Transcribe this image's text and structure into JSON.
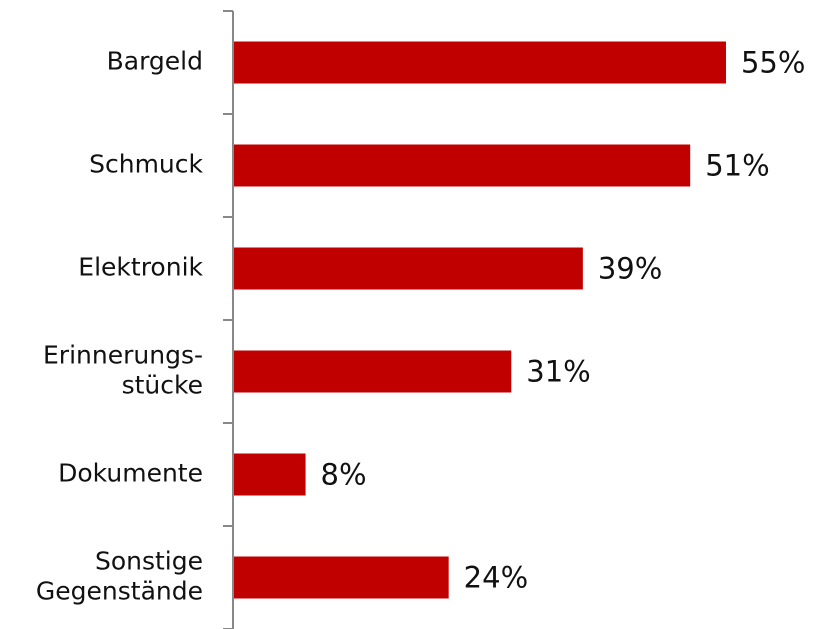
{
  "chart_data": {
    "type": "bar",
    "orientation": "horizontal",
    "categories": [
      "Bargeld",
      "Schmuck",
      "Elektronik",
      "Erinnerungs-\nstücke",
      "Dokumente",
      "Sonstige\nGegenstände"
    ],
    "values": [
      55,
      51,
      39,
      31,
      8,
      24
    ],
    "value_labels": [
      "55%",
      "51%",
      "39%",
      "31%",
      "8%",
      "24%"
    ],
    "color": "#c00000"
  }
}
